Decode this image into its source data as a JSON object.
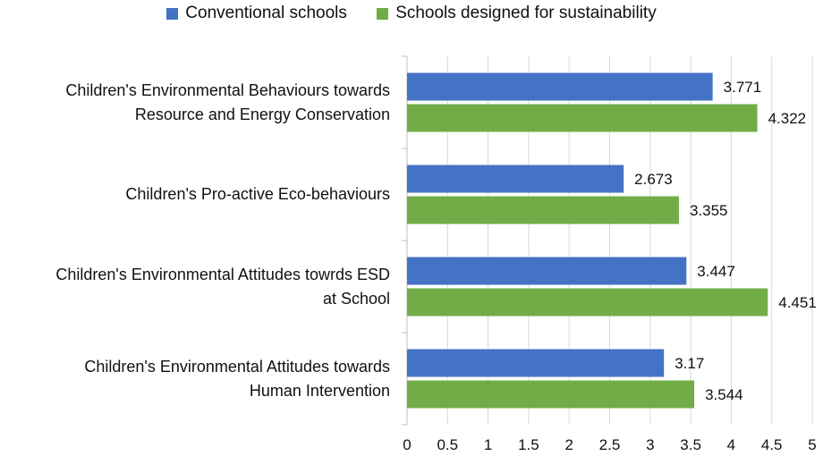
{
  "chart_data": {
    "type": "bar",
    "orientation": "horizontal",
    "title": "",
    "xlabel": "",
    "ylabel": "",
    "xlim": [
      0,
      5
    ],
    "x_ticks": [
      "0",
      "0.5",
      "1",
      "1.5",
      "2",
      "2.5",
      "3",
      "3.5",
      "4",
      "4.5",
      "5"
    ],
    "grid": true,
    "legend_position": "top",
    "categories": [
      "Children's Environmental Behaviours towards\nResource and Energy Conservation",
      "Children's Pro-active Eco-behaviours",
      "Children's Environmental Attitudes towrds ESD\nat School",
      "Children's Environmental Attitudes towards\nHuman Intervention"
    ],
    "series": [
      {
        "name": "Conventional schools",
        "color": "#4472C4",
        "values": [
          3.771,
          2.673,
          3.447,
          3.17
        ],
        "labels": [
          "3.771",
          "2.673",
          "3.447",
          "3.17"
        ]
      },
      {
        "name": "Schools designed for sustainability",
        "color": "#70AD47",
        "values": [
          4.322,
          3.355,
          4.451,
          3.544
        ],
        "labels": [
          "4.322",
          "3.355",
          "4.451",
          "3.544"
        ]
      }
    ]
  }
}
